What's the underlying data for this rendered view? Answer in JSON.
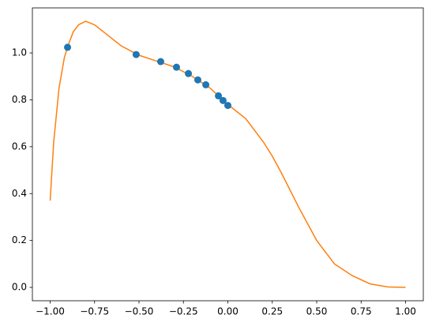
{
  "chart_data": {
    "type": "line",
    "series": [
      {
        "color": "#ff7f0e",
        "marker": false,
        "line": true,
        "x": [
          -1.0,
          -0.98,
          -0.95,
          -0.92,
          -0.9,
          -0.87,
          -0.84,
          -0.8,
          -0.75,
          -0.7,
          -0.6,
          -0.5,
          -0.4,
          -0.3,
          -0.2,
          -0.1,
          0.0,
          0.1,
          0.2,
          0.25,
          0.3,
          0.4,
          0.5,
          0.6,
          0.7,
          0.8,
          0.9,
          1.0
        ],
        "values": [
          0.37,
          0.62,
          0.85,
          0.98,
          1.03,
          1.09,
          1.12,
          1.135,
          1.12,
          1.09,
          1.03,
          0.99,
          0.965,
          0.94,
          0.9,
          0.85,
          0.78,
          0.72,
          0.62,
          0.56,
          0.49,
          0.34,
          0.2,
          0.1,
          0.05,
          0.015,
          0.002,
          0.0
        ]
      },
      {
        "color": "#1f77b4",
        "marker": true,
        "line": false,
        "x": [
          -0.902,
          -0.516,
          -0.378,
          -0.289,
          -0.222,
          -0.169,
          -0.124,
          -0.053,
          -0.027,
          0.0
        ],
        "values": [
          1.024,
          0.993,
          0.963,
          0.939,
          0.912,
          0.885,
          0.864,
          0.817,
          0.797,
          0.776
        ]
      }
    ],
    "xlim": [
      -1.1,
      1.1
    ],
    "ylim": [
      -0.057,
      1.192
    ],
    "xticks": [
      {
        "value": -1.0,
        "label": "−1.00"
      },
      {
        "value": -0.75,
        "label": "−0.75"
      },
      {
        "value": -0.5,
        "label": "−0.50"
      },
      {
        "value": -0.25,
        "label": "−0.25"
      },
      {
        "value": 0.0,
        "label": "0.00"
      },
      {
        "value": 0.25,
        "label": "0.25"
      },
      {
        "value": 0.5,
        "label": "0.50"
      },
      {
        "value": 0.75,
        "label": "0.75"
      },
      {
        "value": 1.0,
        "label": "1.00"
      }
    ],
    "yticks": [
      {
        "value": 0.0,
        "label": "0.0"
      },
      {
        "value": 0.2,
        "label": "0.2"
      },
      {
        "value": 0.4,
        "label": "0.4"
      },
      {
        "value": 0.6,
        "label": "0.6"
      },
      {
        "value": 0.8,
        "label": "0.8"
      },
      {
        "value": 1.0,
        "label": "1.0"
      }
    ],
    "grid": false
  }
}
